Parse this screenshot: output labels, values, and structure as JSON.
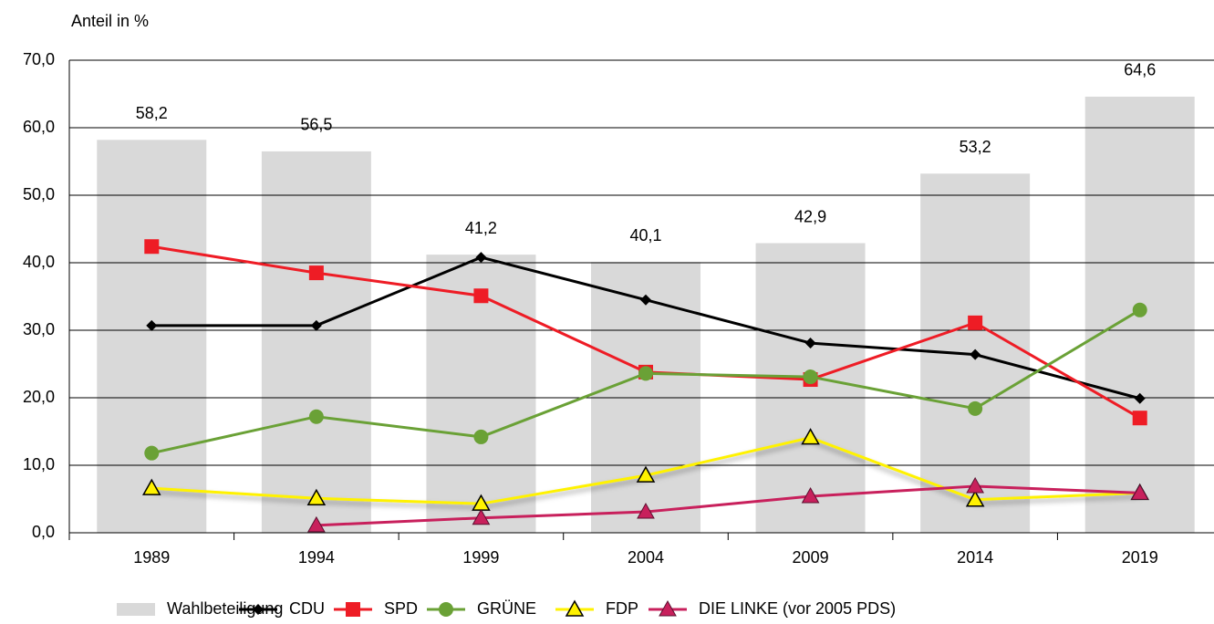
{
  "chart_data": {
    "type": "bar-line",
    "ylabel": "Anteil in %",
    "categories": [
      "1989",
      "1994",
      "1999",
      "2004",
      "2009",
      "2014",
      "2019"
    ],
    "ylim": [
      0,
      70
    ],
    "yticks": [
      {
        "value": 0,
        "label": "0,0"
      },
      {
        "value": 10,
        "label": "10,0"
      },
      {
        "value": 20,
        "label": "20,0"
      },
      {
        "value": 30,
        "label": "30,0"
      },
      {
        "value": 40,
        "label": "40,0"
      },
      {
        "value": 50,
        "label": "50,0"
      },
      {
        "value": 60,
        "label": "60,0"
      },
      {
        "value": 70,
        "label": "70,0"
      }
    ],
    "grid": true,
    "legend": "bottom",
    "series": [
      {
        "name": "Wahlbeteiligung",
        "type": "bar",
        "color": "#d9d9d9",
        "values": [
          58.2,
          56.5,
          41.2,
          40.1,
          42.9,
          53.2,
          64.6
        ],
        "value_labels": [
          "58,2",
          "56,5",
          "41,2",
          "40,1",
          "42,9",
          "53,2",
          "64,6"
        ]
      },
      {
        "name": "CDU",
        "type": "line",
        "color": "#000000",
        "marker": "diamond",
        "values": [
          30.7,
          30.7,
          40.8,
          34.5,
          28.1,
          26.4,
          19.9
        ]
      },
      {
        "name": "SPD",
        "type": "line",
        "color": "#ee1c25",
        "marker": "square",
        "values": [
          42.4,
          38.5,
          35.1,
          23.8,
          22.7,
          31.1,
          17.0
        ]
      },
      {
        "name": "GRÜNE",
        "type": "line",
        "color": "#6aa136",
        "marker": "circle",
        "values": [
          11.8,
          17.2,
          14.2,
          23.6,
          23.1,
          18.4,
          33.0
        ]
      },
      {
        "name": "FDP",
        "type": "line",
        "color": "#fff200",
        "marker": "triangle-outline",
        "values": [
          6.6,
          5.1,
          4.3,
          8.5,
          14.1,
          4.9,
          5.9
        ]
      },
      {
        "name": "DIE LINKE (vor 2005 PDS)",
        "type": "line",
        "color": "#c8205c",
        "marker": "triangle",
        "values": [
          null,
          1.1,
          2.2,
          3.1,
          5.4,
          6.9,
          5.9
        ]
      }
    ]
  }
}
